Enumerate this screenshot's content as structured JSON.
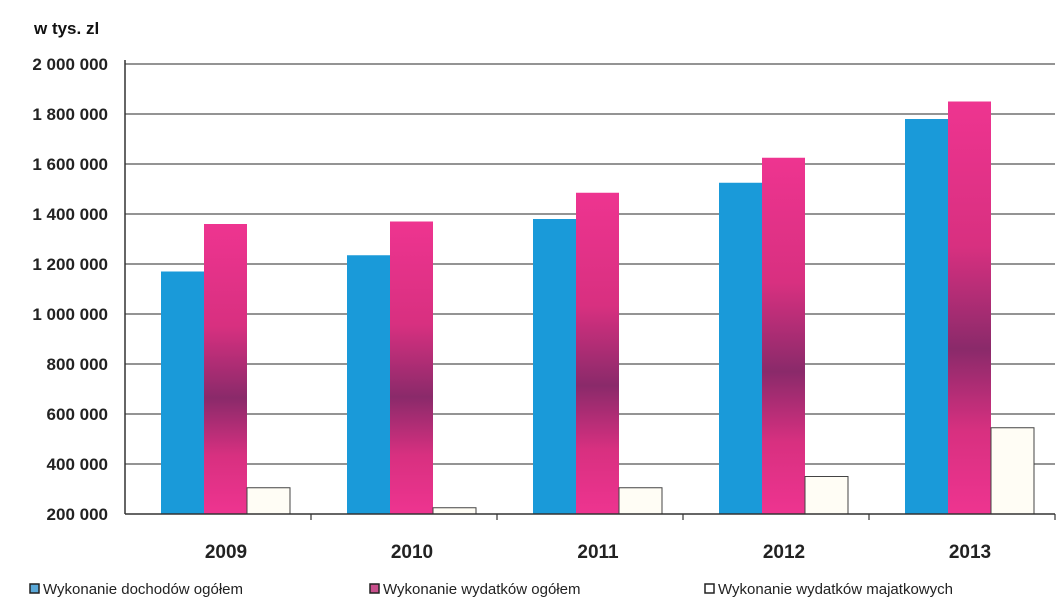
{
  "chart_data": {
    "type": "bar",
    "unit_label": "w tys. zl",
    "categories": [
      "2009",
      "2010",
      "2011",
      "2012",
      "2013"
    ],
    "series": [
      {
        "name": "Wykonanie dochodów ogółem",
        "values": [
          1170000,
          1235000,
          1380000,
          1525000,
          1780000
        ],
        "color": "#1a9ad9"
      },
      {
        "name": "Wykonanie wydatków ogółem",
        "values": [
          1360000,
          1370000,
          1485000,
          1625000,
          1850000
        ],
        "color": "#e8308a",
        "color_mid": "#8a2a6a"
      },
      {
        "name": "Wykonanie wydatków majatkowych",
        "values": [
          305000,
          225000,
          305000,
          350000,
          545000
        ],
        "color": "#fffdf5"
      }
    ],
    "ylim": [
      200000,
      2000000
    ],
    "yticks": [
      200000,
      400000,
      600000,
      800000,
      1000000,
      1200000,
      1400000,
      1600000,
      1800000,
      2000000
    ],
    "ytick_labels": [
      "200 000",
      "400 000",
      "600 000",
      "800 000",
      "1 000 000",
      "1 200 000",
      "1 400 000",
      "1 600 000",
      "1 800 000",
      "2 000 000"
    ],
    "grid": true,
    "legend_position": "bottom"
  }
}
